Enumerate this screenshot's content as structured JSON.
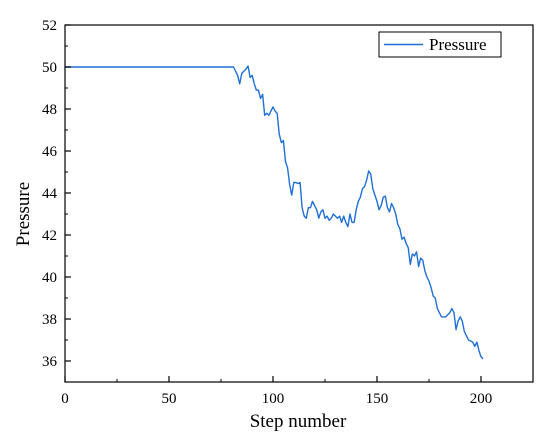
{
  "chart_data": {
    "type": "line",
    "xlabel": "Step number",
    "ylabel": "Pressure",
    "xlim": [
      0,
      225
    ],
    "ylim": [
      35,
      52
    ],
    "xticks": [
      0,
      50,
      100,
      150,
      200
    ],
    "yticks": [
      36,
      38,
      40,
      42,
      44,
      46,
      48,
      50,
      52
    ],
    "xtick_labels": [
      "0",
      "50",
      "100",
      "150",
      "200"
    ],
    "ytick_labels": [
      "36",
      "38",
      "40",
      "42",
      "44",
      "46",
      "48",
      "50",
      "52"
    ],
    "grid": false,
    "legend": {
      "position": "top-right",
      "entries": [
        "Pressure"
      ]
    },
    "series": [
      {
        "name": "Pressure",
        "color": "#1f6fd6",
        "x": [
          0,
          20,
          40,
          60,
          81,
          82,
          83,
          84,
          85,
          86,
          87,
          88,
          89,
          90,
          91,
          92,
          93,
          94,
          95,
          96,
          97,
          98,
          99,
          100,
          101,
          102,
          103,
          104,
          105,
          106,
          107,
          108,
          109,
          110,
          111,
          112,
          113,
          114,
          115,
          116,
          117,
          118,
          119,
          120,
          121,
          122,
          123,
          124,
          125,
          126,
          127,
          128,
          129,
          130,
          131,
          132,
          133,
          134,
          135,
          136,
          137,
          138,
          139,
          140,
          141,
          142,
          143,
          144,
          145,
          146,
          147,
          148,
          149,
          150,
          151,
          152,
          153,
          154,
          155,
          156,
          157,
          158,
          159,
          160,
          161,
          162,
          163,
          164,
          165,
          166,
          167,
          168,
          169,
          170,
          171,
          172,
          173,
          174,
          175,
          176,
          177,
          178,
          179,
          180,
          181,
          182,
          183,
          184,
          185,
          186,
          187,
          188,
          189,
          190,
          191,
          192,
          193,
          194,
          195,
          196,
          197,
          198,
          199,
          200,
          201
        ],
        "values": [
          50,
          50,
          50,
          50,
          50,
          49.8,
          49.6,
          49.2,
          49.7,
          49.8,
          49.9,
          50.05,
          49.5,
          49.6,
          49.2,
          48.9,
          48.9,
          48.5,
          48.7,
          47.7,
          47.8,
          47.7,
          47.9,
          48.1,
          47.9,
          47.8,
          46.8,
          46.4,
          46.5,
          45.5,
          45.2,
          44.4,
          43.9,
          44.5,
          44.5,
          44.45,
          44.5,
          43.3,
          42.9,
          42.8,
          43.3,
          43.3,
          43.6,
          43.4,
          43.2,
          42.8,
          43.1,
          43.2,
          42.8,
          42.9,
          42.7,
          42.8,
          43.0,
          42.9,
          42.8,
          42.9,
          42.6,
          42.9,
          42.6,
          42.4,
          43.0,
          42.6,
          42.6,
          43.2,
          43.6,
          43.8,
          44.2,
          44.3,
          44.6,
          45.05,
          44.9,
          44.2,
          43.9,
          43.6,
          43.2,
          43.4,
          43.8,
          43.85,
          43.3,
          43.1,
          43.5,
          43.3,
          43.0,
          42.5,
          42.3,
          41.8,
          41.9,
          41.6,
          41.4,
          40.6,
          41.1,
          41.0,
          41.2,
          40.5,
          40.9,
          40.8,
          40.3,
          40.0,
          39.8,
          39.5,
          39.1,
          39.0,
          38.5,
          38.3,
          38.1,
          38.1,
          38.1,
          38.2,
          38.3,
          38.5,
          38.3,
          37.5,
          37.9,
          38.1,
          37.9,
          37.4,
          37.2,
          37.0,
          36.95,
          36.9,
          36.7,
          36.9,
          36.5,
          36.2,
          36.1
        ]
      }
    ]
  }
}
